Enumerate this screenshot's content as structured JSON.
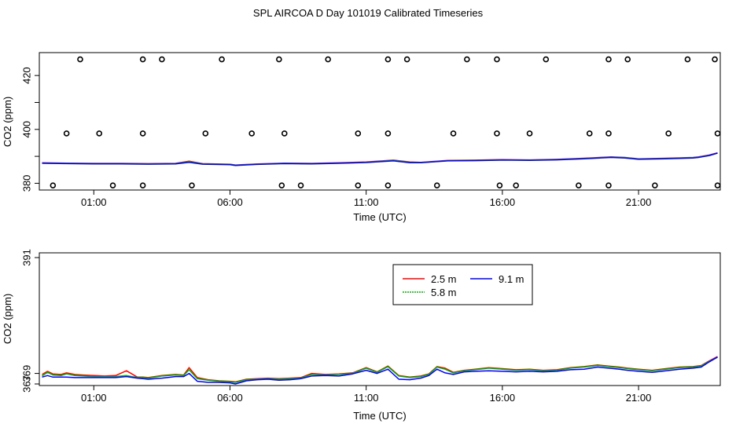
{
  "title": "SPL AIRCOA D  Day 101019  Calibrated Timeseries",
  "chart_data": [
    {
      "type": "line",
      "xlabel": "Time (UTC)",
      "ylabel": "CO2 (ppm)",
      "xlim": [
        -1.0,
        24.0
      ],
      "ylim": [
        377.5,
        428.5
      ],
      "x_ticks": [
        1,
        6,
        11,
        16,
        21
      ],
      "x_tick_labels": [
        "01:00",
        "06:00",
        "11:00",
        "16:00",
        "21:00"
      ],
      "y_ticks": [
        380,
        400,
        420
      ],
      "y_tick_labels": [
        "380",
        "400",
        "420"
      ],
      "y_minor_ticks": [
        390,
        410
      ],
      "series": [
        {
          "name": "2.5 m",
          "color": "#ff0000",
          "x": [
            -0.9,
            0,
            1,
            2,
            3,
            4,
            4.5,
            5,
            6,
            6.2,
            7,
            8,
            9,
            10,
            11,
            12,
            12.6,
            13,
            14,
            15,
            16,
            17,
            18,
            19,
            20,
            20.5,
            21,
            22,
            23,
            23.2,
            23.6,
            23.9
          ],
          "values": [
            387.6,
            387.5,
            387.4,
            387.4,
            387.3,
            387.4,
            388.2,
            387.3,
            387.1,
            386.8,
            387.2,
            387.5,
            387.4,
            387.6,
            387.9,
            388.6,
            387.9,
            387.8,
            388.5,
            388.6,
            388.8,
            388.7,
            388.9,
            389.3,
            389.8,
            389.6,
            389.1,
            389.3,
            389.6,
            389.8,
            390.5,
            391.3
          ]
        },
        {
          "name": "5.8 m",
          "color": "#00b000",
          "x": [
            -0.9,
            0,
            1,
            2,
            3,
            4,
            4.5,
            5,
            6,
            6.2,
            7,
            8,
            9,
            10,
            11,
            12,
            12.6,
            13,
            14,
            15,
            16,
            17,
            18,
            19,
            20,
            20.5,
            21,
            22,
            23,
            23.2,
            23.6,
            23.9
          ],
          "values": [
            387.5,
            387.4,
            387.3,
            387.3,
            387.2,
            387.3,
            388.0,
            387.2,
            387.0,
            386.7,
            387.1,
            387.4,
            387.3,
            387.5,
            387.8,
            388.5,
            387.8,
            387.7,
            388.4,
            388.5,
            388.7,
            388.6,
            388.8,
            389.2,
            389.7,
            389.5,
            389.0,
            389.2,
            389.5,
            389.7,
            390.4,
            391.2
          ]
        },
        {
          "name": "9.1 m",
          "color": "#0000ff",
          "x": [
            -0.9,
            0,
            1,
            2,
            3,
            4,
            4.5,
            5,
            6,
            6.2,
            7,
            8,
            9,
            10,
            11,
            12,
            12.6,
            13,
            14,
            15,
            16,
            17,
            18,
            19,
            20,
            20.5,
            21,
            22,
            23,
            23.2,
            23.6,
            23.9
          ],
          "values": [
            387.4,
            387.3,
            387.2,
            387.2,
            387.1,
            387.2,
            387.8,
            387.1,
            386.9,
            386.6,
            387.0,
            387.3,
            387.2,
            387.4,
            387.7,
            388.3,
            387.6,
            387.6,
            388.3,
            388.4,
            388.6,
            388.5,
            388.7,
            389.1,
            389.6,
            389.4,
            388.9,
            389.1,
            389.4,
            389.6,
            390.3,
            391.2
          ]
        }
      ],
      "markers": [
        {
          "name": "upper flags",
          "marker": "o",
          "x": [
            0.5,
            2.8,
            3.5,
            5.7,
            7.8,
            9.6,
            11.8,
            12.5,
            14.7,
            15.8,
            17.6,
            19.9,
            20.6,
            22.8,
            23.8
          ],
          "values": [
            426,
            426,
            426,
            426,
            426,
            426,
            426,
            426,
            426,
            426,
            426,
            426,
            426,
            426,
            426
          ]
        },
        {
          "name": "middle flags",
          "marker": "o",
          "x": [
            0,
            1.2,
            2.8,
            5.1,
            6.8,
            8.0,
            10.7,
            11.8,
            14.2,
            15.8,
            17.0,
            19.2,
            19.9,
            22.1,
            23.9
          ],
          "values": [
            398.5,
            398.5,
            398.5,
            398.5,
            398.5,
            398.5,
            398.5,
            398.5,
            398.5,
            398.5,
            398.5,
            398.5,
            398.5,
            398.5,
            398.5
          ]
        },
        {
          "name": "lower flags",
          "marker": "o",
          "x": [
            -0.5,
            1.7,
            2.8,
            4.6,
            7.9,
            8.6,
            10.7,
            11.8,
            13.6,
            15.9,
            16.5,
            18.8,
            19.9,
            21.6,
            23.9
          ],
          "values": [
            379.2,
            379.2,
            379.2,
            379.2,
            379.2,
            379.2,
            379.2,
            379.2,
            379.2,
            379.2,
            379.2,
            379.2,
            379.2,
            379.2,
            379.2
          ]
        }
      ]
    },
    {
      "type": "line",
      "xlabel": "Time (UTC)",
      "ylabel": "CO2 (ppm)",
      "xlim": [
        -1.0,
        24.0
      ],
      "ylim": [
        366.7,
        391.9
      ],
      "x_ticks": [
        1,
        6,
        11,
        16,
        21
      ],
      "x_tick_labels": [
        "01:00",
        "06:00",
        "11:00",
        "16:00",
        "21:00"
      ],
      "y_ticks": [
        367,
        369,
        391
      ],
      "y_tick_labels": [
        "367",
        "369",
        "391"
      ],
      "legend": {
        "placement": "top-center",
        "entries": [
          "2.5 m",
          "9.1 m",
          "5.8 m"
        ]
      },
      "series": [
        {
          "name": "2.5 m",
          "color": "#ff0000",
          "x": [
            -0.9,
            -0.7,
            -0.5,
            -0.2,
            0.0,
            0.3,
            0.6,
            1.0,
            1.4,
            1.8,
            2.2,
            2.6,
            2.8,
            3.0,
            3.5,
            4.0,
            4.3,
            4.5,
            4.8,
            5.2,
            5.6,
            6.0,
            6.2,
            6.6,
            7.0,
            7.4,
            7.8,
            8.2,
            8.6,
            9.0,
            9.5,
            10.0,
            10.5,
            11.0,
            11.4,
            11.8,
            12.2,
            12.6,
            13.0,
            13.3,
            13.6,
            13.9,
            14.2,
            14.6,
            15.0,
            15.5,
            16.0,
            16.5,
            17.0,
            17.5,
            18.0,
            18.5,
            19.0,
            19.5,
            19.9,
            20.3,
            20.6,
            21.0,
            21.5,
            22.0,
            22.5,
            23.0,
            23.3,
            23.6,
            23.9
          ],
          "values": [
            368.8,
            369.4,
            368.9,
            368.8,
            369.1,
            368.8,
            368.7,
            368.6,
            368.5,
            368.6,
            369.5,
            368.3,
            368.3,
            368.2,
            368.6,
            368.8,
            368.7,
            370.1,
            368.2,
            367.8,
            367.6,
            367.5,
            367.4,
            367.9,
            368.0,
            368.1,
            368.0,
            368.1,
            368.2,
            369.0,
            368.8,
            368.9,
            369.1,
            370.1,
            369.3,
            370.4,
            368.6,
            368.3,
            368.5,
            368.9,
            370.3,
            370.0,
            369.2,
            369.6,
            369.8,
            370.1,
            369.9,
            369.7,
            369.8,
            369.6,
            369.7,
            370.1,
            370.3,
            370.6,
            370.4,
            370.2,
            370.0,
            369.8,
            369.6,
            369.9,
            370.2,
            370.3,
            370.5,
            371.4,
            372.2
          ]
        },
        {
          "name": "5.8 m",
          "color": "#00b000",
          "x": [
            -0.9,
            -0.7,
            -0.5,
            -0.2,
            0.0,
            0.3,
            0.6,
            1.0,
            1.4,
            1.8,
            2.2,
            2.6,
            2.8,
            3.0,
            3.5,
            4.0,
            4.3,
            4.5,
            4.8,
            5.2,
            5.6,
            6.0,
            6.2,
            6.6,
            7.0,
            7.4,
            7.8,
            8.2,
            8.6,
            9.0,
            9.5,
            10.0,
            10.5,
            11.0,
            11.4,
            11.8,
            12.2,
            12.6,
            13.0,
            13.3,
            13.6,
            13.9,
            14.2,
            14.6,
            15.0,
            15.5,
            16.0,
            16.5,
            17.0,
            17.5,
            18.0,
            18.5,
            19.0,
            19.5,
            19.9,
            20.3,
            20.6,
            21.0,
            21.5,
            22.0,
            22.5,
            23.0,
            23.3,
            23.6,
            23.9
          ],
          "values": [
            368.5,
            369.2,
            368.7,
            368.6,
            368.9,
            368.6,
            368.5,
            368.4,
            368.4,
            368.4,
            368.6,
            368.2,
            368.2,
            368.1,
            368.5,
            368.7,
            368.6,
            369.7,
            368.0,
            367.7,
            367.5,
            367.4,
            367.3,
            367.8,
            367.9,
            368.0,
            367.9,
            368.0,
            368.1,
            368.8,
            368.7,
            368.8,
            369.0,
            370.0,
            369.2,
            370.3,
            368.5,
            368.2,
            368.4,
            368.8,
            370.2,
            369.8,
            369.1,
            369.5,
            369.7,
            370.0,
            369.8,
            369.6,
            369.7,
            369.5,
            369.6,
            370.0,
            370.2,
            370.5,
            370.3,
            370.1,
            369.9,
            369.7,
            369.5,
            369.8,
            370.1,
            370.2,
            370.4,
            371.3,
            372.1
          ]
        },
        {
          "name": "9.1 m",
          "color": "#0000ff",
          "x": [
            -0.9,
            -0.7,
            -0.5,
            -0.2,
            0.0,
            0.3,
            0.6,
            1.0,
            1.4,
            1.8,
            2.2,
            2.6,
            2.8,
            3.0,
            3.5,
            4.0,
            4.3,
            4.5,
            4.8,
            5.2,
            5.6,
            6.0,
            6.2,
            6.6,
            7.0,
            7.4,
            7.8,
            8.2,
            8.6,
            9.0,
            9.5,
            10.0,
            10.5,
            11.0,
            11.4,
            11.8,
            12.2,
            12.6,
            13.0,
            13.3,
            13.6,
            13.9,
            14.2,
            14.6,
            15.0,
            15.5,
            16.0,
            16.5,
            17.0,
            17.5,
            18.0,
            18.5,
            19.0,
            19.5,
            19.9,
            20.3,
            20.6,
            21.0,
            21.5,
            22.0,
            22.5,
            23.0,
            23.3,
            23.6,
            23.9
          ],
          "values": [
            368.3,
            368.6,
            368.3,
            368.3,
            368.3,
            368.2,
            368.2,
            368.2,
            368.2,
            368.2,
            368.4,
            368.1,
            368.0,
            367.9,
            368.1,
            368.4,
            368.4,
            369.0,
            367.5,
            367.3,
            367.3,
            367.2,
            367.0,
            367.6,
            367.8,
            367.9,
            367.7,
            367.8,
            368.0,
            368.5,
            368.6,
            368.5,
            368.9,
            369.6,
            369.0,
            369.8,
            367.9,
            367.8,
            368.1,
            368.6,
            369.8,
            369.1,
            368.8,
            369.3,
            369.4,
            369.5,
            369.4,
            369.3,
            369.4,
            369.3,
            369.4,
            369.7,
            369.8,
            370.2,
            370.0,
            369.8,
            369.6,
            369.4,
            369.2,
            369.5,
            369.8,
            370.0,
            370.2,
            371.2,
            372.1
          ]
        }
      ]
    }
  ]
}
